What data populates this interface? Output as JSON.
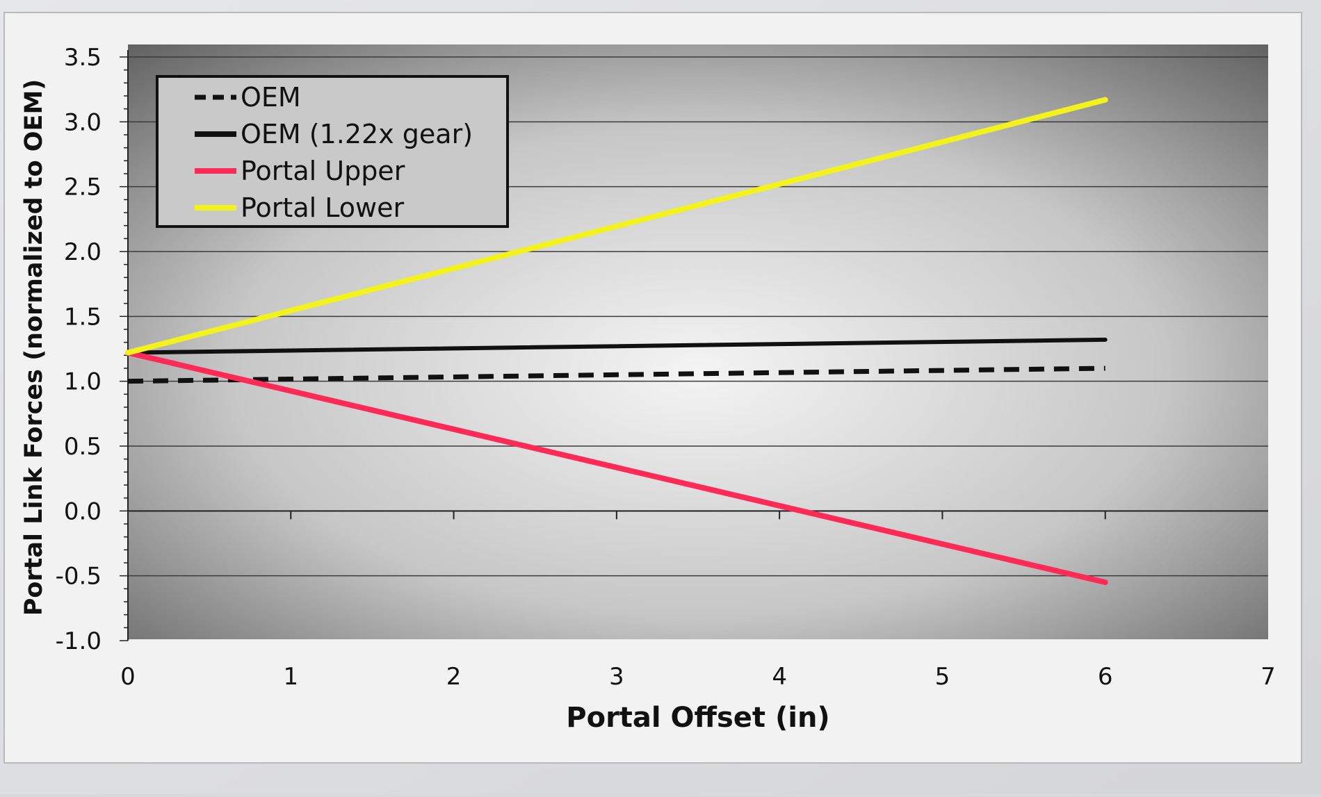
{
  "chart_data": {
    "type": "line",
    "title": "",
    "xlabel": "Portal Offset (in)",
    "ylabel": "Portal Link Forces (normalized to OEM)",
    "xlim": [
      0,
      7
    ],
    "ylim": [
      -1.0,
      3.5
    ],
    "x_ticks": [
      "0",
      "1",
      "2",
      "3",
      "4",
      "5",
      "6",
      "7"
    ],
    "y_ticks": [
      "3.5",
      "3.0",
      "2.5",
      "2.0",
      "1.5",
      "1.0",
      "0.5",
      "0.0",
      "-0.5",
      "-1.0"
    ],
    "y_tick_values": [
      3.5,
      3.0,
      2.5,
      2.0,
      1.5,
      1.0,
      0.5,
      0.0,
      -0.5,
      -1.0
    ],
    "grid": true,
    "legend_position": "top-left",
    "series": [
      {
        "name": "OEM",
        "x": [
          0,
          6
        ],
        "y": [
          1.0,
          1.1
        ],
        "color": "#111111",
        "dash": true
      },
      {
        "name": "OEM (1.22x gear)",
        "x": [
          0,
          6
        ],
        "y": [
          1.22,
          1.32
        ],
        "color": "#111111",
        "dash": false
      },
      {
        "name": "Portal Upper",
        "x": [
          0,
          6
        ],
        "y": [
          1.22,
          -0.55
        ],
        "color": "#ff2a55",
        "dash": false
      },
      {
        "name": "Portal Lower",
        "x": [
          0,
          6
        ],
        "y": [
          1.22,
          3.17
        ],
        "color": "#f2f21c",
        "dash": false
      }
    ]
  }
}
